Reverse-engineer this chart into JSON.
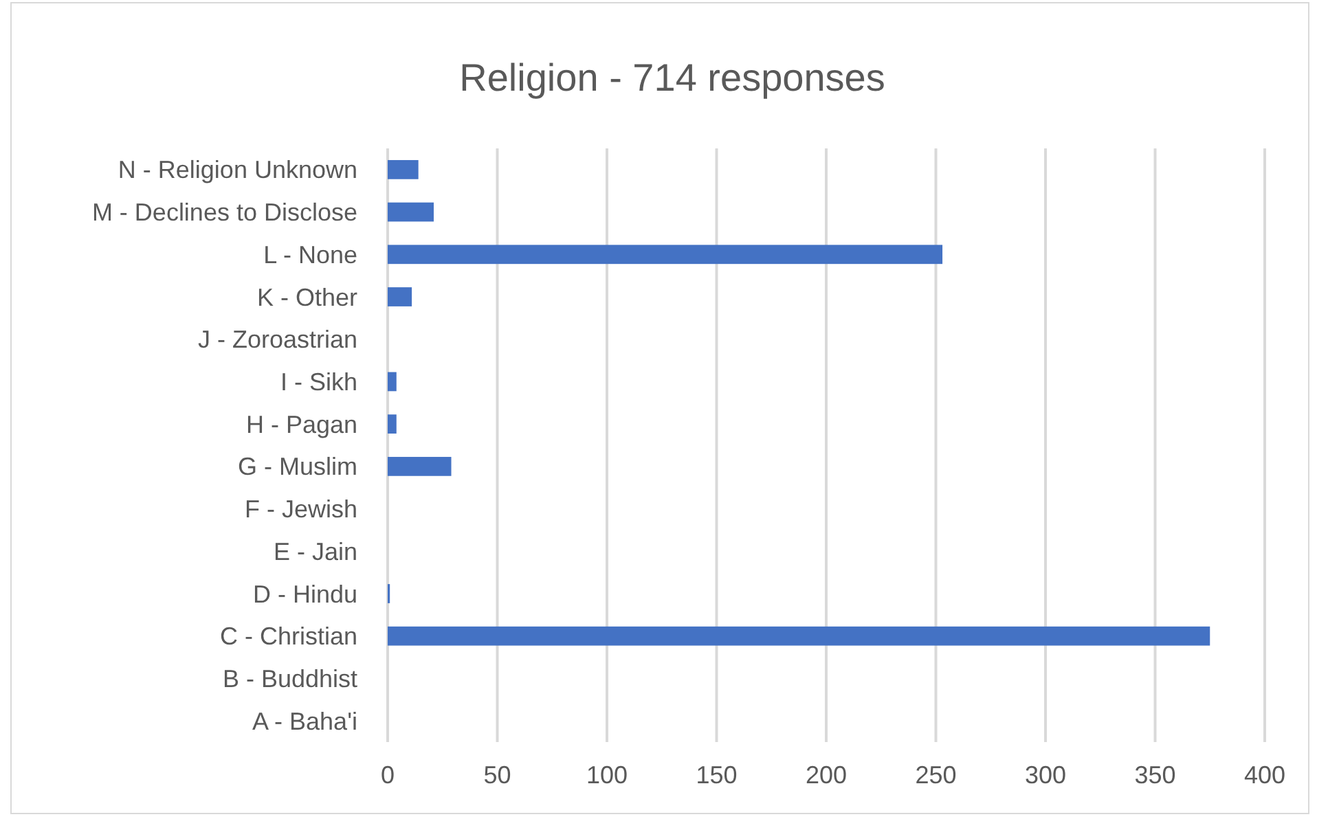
{
  "chart_data": {
    "type": "bar",
    "orientation": "horizontal",
    "title": "Religion - 714 responses",
    "categories": [
      "N - Religion Unknown",
      "M - Declines to Disclose",
      "L - None",
      "K - Other",
      "J - Zoroastrian",
      "I - Sikh",
      "H - Pagan",
      "G - Muslim",
      "F - Jewish",
      "E - Jain",
      "D - Hindu",
      "C - Christian",
      "B - Buddhist",
      "A - Baha'i"
    ],
    "values": [
      14,
      21,
      253,
      11,
      0,
      4,
      4,
      29,
      0,
      0,
      1,
      375,
      0,
      0
    ],
    "color": "#4472c4",
    "xlim": [
      0,
      400
    ],
    "xticks": [
      0,
      50,
      100,
      150,
      200,
      250,
      300,
      350,
      400
    ],
    "grid": "x"
  }
}
